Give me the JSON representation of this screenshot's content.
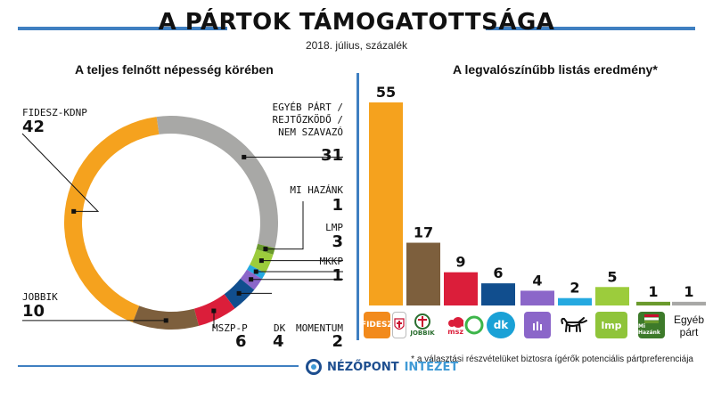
{
  "header": {
    "title": "A PÁRTOK TÁMOGATOTTSÁGA",
    "subtitle": "2018. július, százalék"
  },
  "colors": {
    "accent": "#3f7fc1",
    "fidesz": "#f5a21e",
    "egyeb": "#a8a8a6",
    "mihazank": "#6a9a2c",
    "lmp": "#9ccc3c",
    "mkkp": "#25a9e0",
    "momentum": "#8b66c9",
    "dk": "#114e8e",
    "mszp": "#db1e3a",
    "jobbik": "#7d5f3d"
  },
  "chart_data": [
    {
      "type": "pie",
      "title": "A teljes felnőtt népesség körében",
      "labels": [
        "FIDESZ-KDNP",
        "EGYÉB PÁRT / REJTŐZKÖDŐ / NEM SZAVAZÓ",
        "MI HAZÁNK",
        "LMP",
        "MKKP",
        "MOMENTUM",
        "DK",
        "MSZP-P",
        "JOBBIK"
      ],
      "label_lines": [
        [
          "FIDESZ-KDNP"
        ],
        [
          "EGYÉB PÁRT /",
          "REJTŐZKÖDŐ /",
          "NEM SZAVAZÓ"
        ],
        [
          "MI HAZÁNK"
        ],
        [
          "LMP"
        ],
        [
          "MKKP"
        ],
        [
          "MOMENTUM"
        ],
        [
          "DK"
        ],
        [
          "MSZP-P"
        ],
        [
          "JOBBIK"
        ]
      ],
      "values": [
        42,
        31,
        1,
        3,
        1,
        2,
        4,
        6,
        10
      ],
      "colors": [
        "#f5a21e",
        "#a8a8a6",
        "#6a9a2c",
        "#9ccc3c",
        "#25a9e0",
        "#8b66c9",
        "#114e8e",
        "#db1e3a",
        "#7d5f3d"
      ],
      "donut": true
    },
    {
      "type": "bar",
      "title": "A legvalószínűbb listás eredmény*",
      "categories": [
        "FIDESZ-KDNP",
        "JOBBIK",
        "MSZP-P",
        "DK",
        "MOMENTUM",
        "MKKP",
        "LMP",
        "MI HAZÁNK",
        "Egyéb párt"
      ],
      "values": [
        55,
        17,
        9,
        6,
        4,
        2,
        5,
        1,
        1
      ],
      "colors": [
        "#f5a21e",
        "#7d5f3d",
        "#db1e3a",
        "#114e8e",
        "#8b66c9",
        "#25a9e0",
        "#9ccc3c",
        "#6a9a2c",
        "#a8a8a6"
      ],
      "ylim": [
        0,
        55
      ],
      "grid": false
    }
  ],
  "logos": {
    "fidesz": "FIDESZ",
    "jobbik": "JOBBIK",
    "mszp": "mszp",
    "dk": "dk",
    "lmp": "lmp",
    "mihazank": "Mi Hazánk",
    "egyeb_line1": "Egyéb",
    "egyeb_line2": "párt"
  },
  "footnote": "* a választási részvételüket biztosra ígérők potenciális pártpreferenciája",
  "brand": {
    "name": "NÉZŐPONT",
    "suffix": "INTÉZET"
  }
}
